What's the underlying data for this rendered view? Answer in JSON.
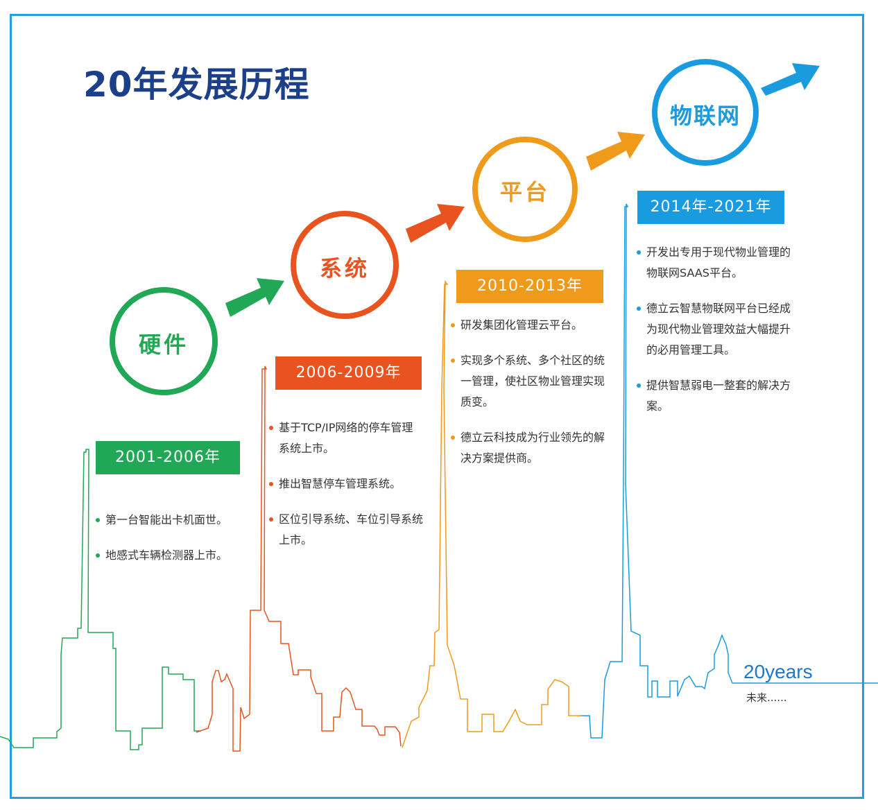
{
  "title": "20年发展历程",
  "colors": {
    "green": "#20a856",
    "red": "#e8531f",
    "orange": "#f09a1c",
    "blue": "#1a9be0",
    "title": "#1c3f8a"
  },
  "stages": [
    {
      "circle_label": "硬件",
      "period": "2001-2006年",
      "items": [
        "第一台智能出卡机面世。",
        "地感式车辆检测器上市。"
      ]
    },
    {
      "circle_label": "系统",
      "period": "2006-2009年",
      "items": [
        "基于TCP/IP网络的停车管理系统上市。",
        "推出智慧停车管理系统。",
        "区位引导系统、车位引导系统上市。"
      ]
    },
    {
      "circle_label": "平台",
      "period": "2010-2013年",
      "items": [
        "研发集团化管理云平台。",
        "实现多个系统、多个社区的统一管理，使社区物业管理实现质变。",
        "德立云科技成为行业领先的解决方案提供商。"
      ]
    },
    {
      "circle_label": "物联网",
      "period": "2014年-2021年",
      "items": [
        "开发出专用于现代物业管理的物联网SAAS平台。",
        "德立云智慧物联网平台已经成为现代物业管理效益大幅提升的必用管理工具。",
        "提供智慧弱电一整套的解决方案。"
      ]
    }
  ],
  "footer": {
    "years_label": "20years",
    "future_label": "未来......"
  }
}
